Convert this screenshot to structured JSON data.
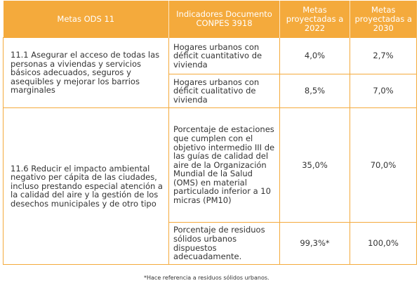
{
  "headers": {
    "goals": "Metas ODS 11",
    "indicators": "Indicadores Documento CONPES 3918",
    "goals_2022": "Metas proyectadas a 2022",
    "goals_2030": "Metas proyectadas a 2030"
  },
  "rows": [
    {
      "goal": "11.1 Asegurar el acceso de todas las personas a viviendas y servicios básicos adecuados, seguros y asequibles y mejorar los barrios marginales",
      "indicators": [
        {
          "text": "Hogares urbanos con déficit cuantitativo de vivienda",
          "y2022": "4,0%",
          "y2030": "2,7%"
        },
        {
          "text": "Hogares urbanos con déficit cualitativo de vivienda",
          "y2022": "8,5%",
          "y2030": "7,0%"
        }
      ]
    },
    {
      "goal": "11.6 Reducir el impacto ambiental negativo per cápita de las ciudades, incluso prestando especial atención a la calidad del aire y la gestión de los desechos municipales y de otro tipo",
      "indicators": [
        {
          "text": "Porcentaje de estaciones que cumplen con el objetivo intermedio III de las guías de calidad del aire de la Organización Mundial de la Salud (OMS) en material particulado inferior a 10 micras (PM10)",
          "y2022": "35,0%",
          "y2030": "70,0%"
        },
        {
          "text": "Porcentaje de residuos sólidos urbanos dispuestos adecuadamente.",
          "y2022": "99,3%*",
          "y2030": "100,0%"
        }
      ]
    }
  ],
  "footnote": "*Hace referencia a residuos sólidos urbanos."
}
